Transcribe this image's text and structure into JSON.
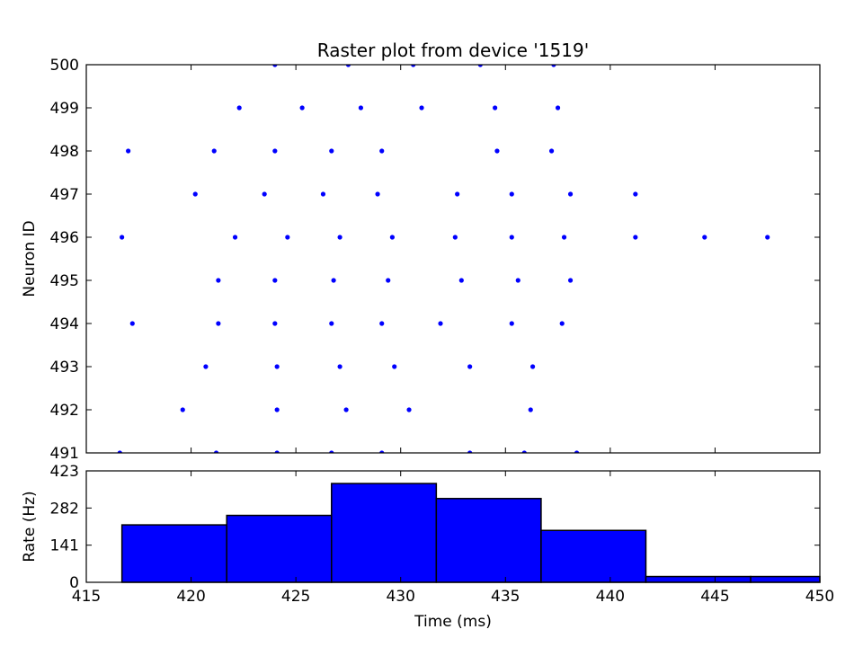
{
  "chart_data": [
    {
      "type": "scatter",
      "title": "Raster plot from device '1519'",
      "xlabel": "",
      "ylabel": "Neuron ID",
      "xlim": [
        415,
        450
      ],
      "ylim": [
        491,
        500
      ],
      "yticks": [
        491,
        492,
        493,
        494,
        495,
        496,
        497,
        498,
        499,
        500
      ],
      "yticklabels": [
        "491",
        "492",
        "493",
        "494",
        "495",
        "496",
        "497",
        "498",
        "499",
        "500"
      ],
      "color": "#0000ff",
      "points": [
        [
          424.0,
          500
        ],
        [
          427.5,
          500
        ],
        [
          430.6,
          500
        ],
        [
          433.8,
          500
        ],
        [
          437.3,
          500
        ],
        [
          422.3,
          499
        ],
        [
          425.3,
          499
        ],
        [
          428.1,
          499
        ],
        [
          431.0,
          499
        ],
        [
          434.5,
          499
        ],
        [
          437.5,
          499
        ],
        [
          417.0,
          498
        ],
        [
          421.1,
          498
        ],
        [
          424.0,
          498
        ],
        [
          426.7,
          498
        ],
        [
          429.1,
          498
        ],
        [
          434.6,
          498
        ],
        [
          437.2,
          498
        ],
        [
          420.2,
          497
        ],
        [
          423.5,
          497
        ],
        [
          426.3,
          497
        ],
        [
          428.9,
          497
        ],
        [
          432.7,
          497
        ],
        [
          435.3,
          497
        ],
        [
          438.1,
          497
        ],
        [
          441.2,
          497
        ],
        [
          416.7,
          496
        ],
        [
          422.1,
          496
        ],
        [
          424.6,
          496
        ],
        [
          427.1,
          496
        ],
        [
          429.6,
          496
        ],
        [
          432.6,
          496
        ],
        [
          435.3,
          496
        ],
        [
          437.8,
          496
        ],
        [
          441.2,
          496
        ],
        [
          444.5,
          496
        ],
        [
          447.5,
          496
        ],
        [
          421.3,
          495
        ],
        [
          424.0,
          495
        ],
        [
          426.8,
          495
        ],
        [
          429.4,
          495
        ],
        [
          432.9,
          495
        ],
        [
          435.6,
          495
        ],
        [
          438.1,
          495
        ],
        [
          417.2,
          494
        ],
        [
          421.3,
          494
        ],
        [
          424.0,
          494
        ],
        [
          426.7,
          494
        ],
        [
          429.1,
          494
        ],
        [
          431.9,
          494
        ],
        [
          435.3,
          494
        ],
        [
          437.7,
          494
        ],
        [
          420.7,
          493
        ],
        [
          424.1,
          493
        ],
        [
          427.1,
          493
        ],
        [
          429.7,
          493
        ],
        [
          433.3,
          493
        ],
        [
          436.3,
          493
        ],
        [
          419.6,
          492
        ],
        [
          424.1,
          492
        ],
        [
          427.4,
          492
        ],
        [
          430.4,
          492
        ],
        [
          436.2,
          492
        ],
        [
          416.6,
          491
        ],
        [
          421.2,
          491
        ],
        [
          424.1,
          491
        ],
        [
          426.7,
          491
        ],
        [
          429.1,
          491
        ],
        [
          433.3,
          491
        ],
        [
          435.9,
          491
        ],
        [
          438.4,
          491
        ]
      ]
    },
    {
      "type": "bar",
      "title": "",
      "xlabel": "Time (ms)",
      "ylabel": "Rate (Hz)",
      "xlim": [
        415,
        450
      ],
      "ylim": [
        0,
        423
      ],
      "yticks": [
        0,
        141,
        282,
        423
      ],
      "yticklabels": [
        "0",
        "141",
        "282",
        "423"
      ],
      "xticks": [
        415,
        420,
        425,
        430,
        435,
        440,
        445,
        450
      ],
      "xticklabels": [
        "415",
        "420",
        "425",
        "430",
        "435",
        "440",
        "445",
        "450"
      ],
      "color": "#0000ff",
      "bin_edges": [
        416.7,
        421.7,
        426.7,
        431.7,
        436.7,
        441.7,
        446.7,
        451.7
      ],
      "values": [
        218,
        254,
        375,
        318,
        197,
        22,
        22
      ]
    }
  ]
}
